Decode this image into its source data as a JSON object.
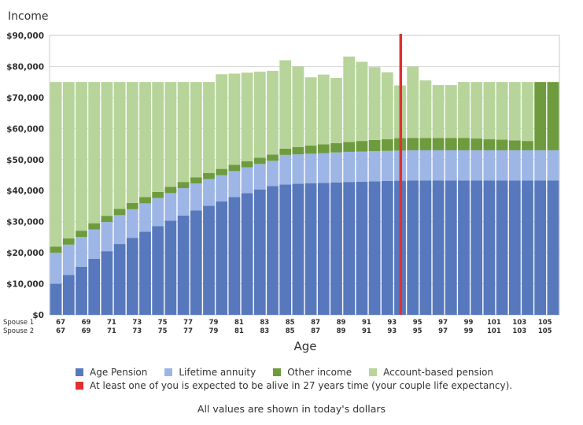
{
  "chart_data": {
    "type": "bar",
    "stacked": true,
    "title": "Income",
    "xlabel": "Age",
    "row_labels": [
      "Spouse 1",
      "Spouse 2"
    ],
    "ylim": [
      0,
      90000
    ],
    "y_ticks": [
      "$0",
      "$10,000",
      "$20,000",
      "$30,000",
      "$40,000",
      "$50,000",
      "$60,000",
      "$70,000",
      "$80,000",
      "$90,000"
    ],
    "x_tick_labels": [
      "67",
      "69",
      "71",
      "73",
      "75",
      "77",
      "79",
      "81",
      "83",
      "85",
      "87",
      "89",
      "91",
      "93",
      "95",
      "97",
      "99",
      "101",
      "103",
      "105"
    ],
    "categories": [
      67,
      68,
      69,
      70,
      71,
      72,
      73,
      74,
      75,
      76,
      77,
      78,
      79,
      80,
      81,
      82,
      83,
      84,
      85,
      86,
      87,
      88,
      89,
      90,
      91,
      92,
      93,
      94,
      95,
      96,
      97,
      98,
      99,
      100,
      101,
      102,
      103,
      104,
      105,
      106
    ],
    "series": [
      {
        "name": "Age Pension",
        "color": "#5878bd",
        "values": [
          10000,
          12800,
          15500,
          18000,
          20500,
          22800,
          24800,
          26800,
          28600,
          30300,
          32000,
          33600,
          35100,
          36500,
          37900,
          39200,
          40400,
          41500,
          42000,
          42200,
          42400,
          42500,
          42600,
          42800,
          42900,
          43000,
          43100,
          43200,
          43300,
          43300,
          43300,
          43300,
          43300,
          43300,
          43300,
          43300,
          43300,
          43300,
          43300,
          43300
        ]
      },
      {
        "name": "Lifetime annuity",
        "color": "#9db6e6",
        "values": [
          10000,
          9800,
          9600,
          9500,
          9400,
          9300,
          9200,
          9100,
          9000,
          8900,
          8800,
          8700,
          8600,
          8500,
          8400,
          8300,
          8200,
          8100,
          9500,
          9500,
          9500,
          9600,
          9700,
          9700,
          9700,
          9700,
          9700,
          9700,
          9700,
          9700,
          9700,
          9700,
          9700,
          9700,
          9700,
          9700,
          9700,
          9700,
          9700,
          9700
        ]
      },
      {
        "name": "Other income",
        "color": "#6e9b3e",
        "values": [
          2000,
          2000,
          2000,
          2000,
          2000,
          2000,
          2000,
          2000,
          2000,
          2000,
          2000,
          2000,
          2000,
          2000,
          2000,
          2000,
          2000,
          2000,
          2000,
          2300,
          2600,
          2800,
          3000,
          3200,
          3400,
          3600,
          3800,
          4000,
          4000,
          4000,
          4000,
          4000,
          4000,
          3800,
          3600,
          3400,
          3200,
          3000,
          22000,
          22000
        ]
      },
      {
        "name": "Account-based pension",
        "color": "#b7d49a",
        "values": [
          53000,
          50400,
          47900,
          45500,
          43100,
          40900,
          39000,
          37100,
          35400,
          33800,
          32200,
          30700,
          29300,
          30500,
          29400,
          28500,
          27700,
          27000,
          28500,
          26000,
          22000,
          22500,
          21000,
          27500,
          25500,
          23500,
          21500,
          17000,
          23000,
          18500,
          17000,
          17000,
          18000,
          18200,
          18400,
          18600,
          18800,
          19000,
          0,
          0
        ]
      }
    ],
    "marker": {
      "name": "At least one of you is expected to be alive in 27 years time (your couple life expectancy).",
      "color": "#e03030",
      "at_category": 94
    },
    "grid": "horizontal",
    "legend_position": "bottom"
  },
  "footnote": "All values are shown in today's dollars"
}
